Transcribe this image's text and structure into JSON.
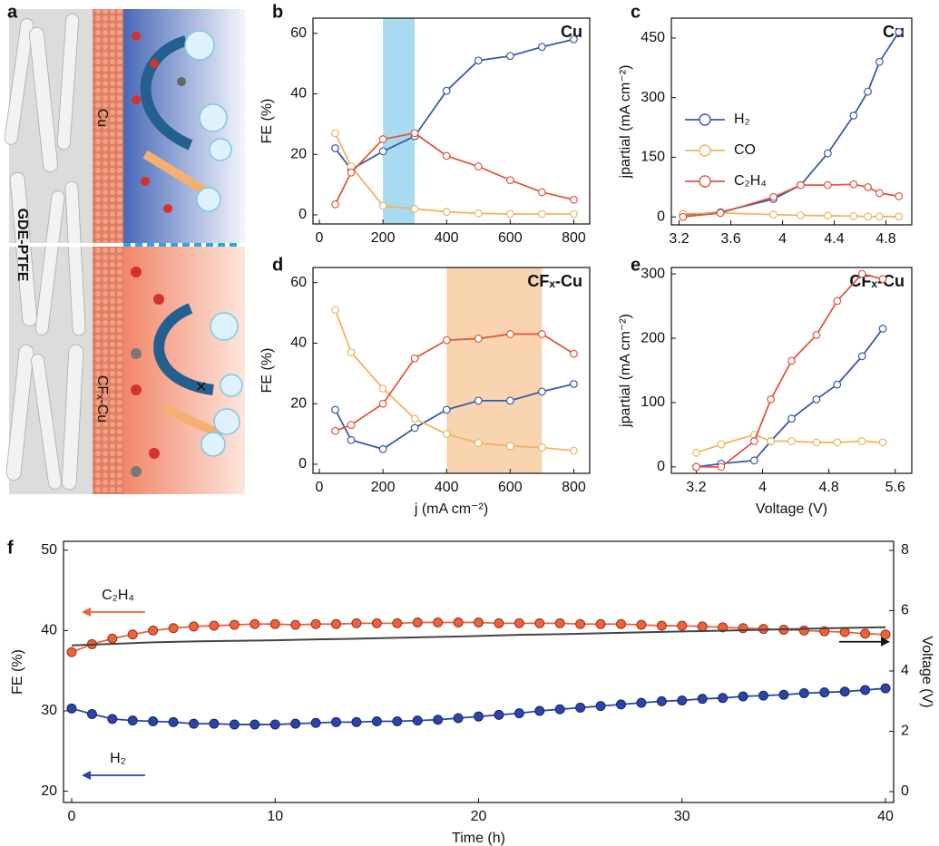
{
  "illustration": {
    "panel_label": "a",
    "substrate_label": "GDE-PTFE",
    "top_label": "Cu",
    "bottom_label": "CFₓ-Cu"
  },
  "chart_data": [
    {
      "type": "line",
      "panel_label": "b",
      "title": "Cu",
      "ylabel": "FE (%)",
      "x": [
        50,
        100,
        200,
        300,
        400,
        500,
        600,
        700,
        800
      ],
      "xlim": [
        -20,
        850
      ],
      "xticks": [
        0,
        200,
        400,
        600,
        800
      ],
      "ylim": [
        -3,
        65
      ],
      "yticks": [
        0,
        20,
        40,
        60
      ],
      "shade": [
        200,
        300
      ],
      "shade_color": "#a8daf0",
      "marker": "hollow",
      "series": [
        {
          "name": "H₂",
          "color": "#3a5ba8",
          "values": [
            22,
            15,
            21,
            26,
            41,
            51,
            52.5,
            55.5,
            58
          ]
        },
        {
          "name": "CO",
          "color": "#f0b460",
          "values": [
            27,
            16,
            3,
            2,
            1,
            0.5,
            0.3,
            0.3,
            0.3
          ]
        },
        {
          "name": "C₂H₄",
          "color": "#e0583c",
          "values": [
            3.5,
            14,
            25,
            27,
            19.5,
            16,
            11.5,
            7.5,
            5
          ]
        }
      ]
    },
    {
      "type": "line",
      "panel_label": "c",
      "title": "Cu",
      "ylabel": "jpartial (mA cm⁻²)",
      "x": [
        3.23,
        3.52,
        3.93,
        4.14,
        4.35,
        4.55,
        4.66,
        4.75,
        4.9
      ],
      "xlim": [
        3.14,
        5.0
      ],
      "xticks": [
        3.2,
        3.6,
        4.0,
        4.4,
        4.8
      ],
      "ylim": [
        -20,
        500
      ],
      "yticks": [
        0,
        150,
        300,
        450
      ],
      "legend": "upper left",
      "marker": "hollow",
      "series": [
        {
          "name": "H₂",
          "color": "#3a5ba8",
          "values": [
            5,
            12,
            45,
            80,
            160,
            255,
            315,
            390,
            465
          ]
        },
        {
          "name": "CO",
          "color": "#f0b460",
          "values": [
            8,
            10,
            6,
            4,
            3,
            2,
            1,
            1,
            1
          ]
        },
        {
          "name": "C₂H₄",
          "color": "#e0583c",
          "values": [
            0,
            10,
            50,
            80,
            80,
            82,
            75,
            60,
            52
          ]
        }
      ]
    },
    {
      "type": "line",
      "panel_label": "d",
      "title": "CFₓ-Cu",
      "ylabel": "FE (%)",
      "xlabel": "j (mA cm⁻²)",
      "x": [
        50,
        100,
        200,
        300,
        400,
        500,
        600,
        700,
        800
      ],
      "xlim": [
        -20,
        850
      ],
      "xticks": [
        0,
        200,
        400,
        600,
        800
      ],
      "ylim": [
        -3,
        65
      ],
      "yticks": [
        0,
        20,
        40,
        60
      ],
      "shade": [
        400,
        700
      ],
      "shade_color": "#f8d4b0",
      "marker": "hollow",
      "series": [
        {
          "name": "H₂",
          "color": "#3a5ba8",
          "values": [
            18,
            8,
            5,
            12,
            18,
            21,
            21,
            24,
            26.5
          ]
        },
        {
          "name": "CO",
          "color": "#f0b460",
          "values": [
            51,
            37,
            25,
            15,
            10,
            7,
            6,
            5.5,
            4.5
          ]
        },
        {
          "name": "C₂H₄",
          "color": "#e0583c",
          "values": [
            11,
            13,
            20,
            35,
            41,
            41.5,
            43,
            43,
            36.5
          ]
        }
      ]
    },
    {
      "type": "line",
      "panel_label": "e",
      "title": "CFₓ-Cu",
      "ylabel": "jpartial (mA cm⁻²)",
      "xlabel": "Voltage (V)",
      "x": [
        3.2,
        3.5,
        3.9,
        4.1,
        4.35,
        4.65,
        4.9,
        5.2,
        5.45
      ],
      "xlim": [
        2.9,
        5.8
      ],
      "xticks": [
        3.2,
        4.0,
        4.8,
        5.6
      ],
      "ylim": [
        -10,
        310
      ],
      "yticks": [
        0,
        100,
        200,
        300
      ],
      "marker": "hollow",
      "series": [
        {
          "name": "H₂",
          "color": "#3a5ba8",
          "values": [
            0,
            5,
            10,
            40,
            75,
            105,
            128,
            172,
            215
          ]
        },
        {
          "name": "CO",
          "color": "#f0b460",
          "values": [
            22,
            35,
            50,
            40,
            40,
            38,
            38,
            40,
            38
          ]
        },
        {
          "name": "C₂H₄",
          "color": "#e0583c",
          "values": [
            0,
            0,
            40,
            105,
            165,
            205,
            258,
            300,
            292
          ]
        }
      ]
    },
    {
      "type": "line",
      "panel_label": "f",
      "ylabel": "FE (%)",
      "xlabel": "Time (h)",
      "y2label": "Voltage (V)",
      "x": [
        0,
        1,
        2,
        3,
        4,
        5,
        6,
        7,
        8,
        9,
        10,
        11,
        12,
        13,
        14,
        15,
        16,
        17,
        18,
        19,
        20,
        21,
        22,
        23,
        24,
        25,
        26,
        27,
        28,
        29,
        30,
        31,
        32,
        33,
        34,
        35,
        36,
        37,
        38,
        39,
        40
      ],
      "xlim": [
        -0.4,
        40.4
      ],
      "xticks": [
        0,
        10,
        20,
        30,
        40
      ],
      "ylim": [
        18.6,
        51.1
      ],
      "yticks": [
        20,
        30,
        40,
        50
      ],
      "y2lim": [
        -0.36,
        8.3
      ],
      "y2ticks": [
        0,
        2,
        4,
        6,
        8
      ],
      "marker": "filled",
      "series": [
        {
          "name": "C₂H₄",
          "color": "#f0603a",
          "values": [
            37.3,
            38.3,
            39.0,
            39.5,
            40.0,
            40.3,
            40.5,
            40.6,
            40.7,
            40.8,
            40.8,
            40.7,
            40.8,
            40.8,
            40.9,
            40.9,
            40.9,
            41.0,
            41.0,
            41.0,
            41.0,
            40.9,
            40.9,
            40.9,
            40.9,
            40.8,
            40.8,
            40.8,
            40.7,
            40.6,
            40.6,
            40.5,
            40.4,
            40.3,
            40.2,
            40.1,
            40.0,
            39.9,
            39.8,
            39.6,
            39.5
          ]
        },
        {
          "name": "H₂",
          "color": "#2a44a8",
          "values": [
            30.3,
            29.6,
            29.0,
            28.8,
            28.7,
            28.6,
            28.4,
            28.4,
            28.3,
            28.3,
            28.3,
            28.4,
            28.5,
            28.6,
            28.6,
            28.7,
            28.7,
            28.8,
            28.9,
            29.1,
            29.3,
            29.5,
            29.7,
            30.0,
            30.2,
            30.4,
            30.6,
            30.8,
            31.0,
            31.2,
            31.3,
            31.5,
            31.6,
            31.8,
            31.9,
            32.0,
            32.2,
            32.3,
            32.4,
            32.6,
            32.8
          ]
        },
        {
          "color": "#444444",
          "axis": "y2",
          "x": [
            0,
            2,
            4,
            6,
            8,
            10,
            12,
            14,
            16,
            18,
            20,
            22,
            24,
            26,
            28,
            30,
            32,
            34,
            36,
            38,
            40
          ],
          "values": [
            4.85,
            4.9,
            4.95,
            4.98,
            5.0,
            5.02,
            5.05,
            5.07,
            5.1,
            5.13,
            5.16,
            5.2,
            5.22,
            5.25,
            5.28,
            5.31,
            5.34,
            5.37,
            5.4,
            5.43,
            5.45
          ]
        }
      ]
    }
  ]
}
